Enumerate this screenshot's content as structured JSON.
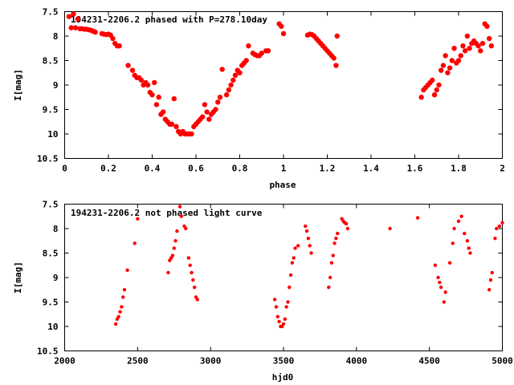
{
  "chart_data": [
    {
      "type": "scatter",
      "title": "194231-2206.2 phased with P=278.10day",
      "xlabel": "phase",
      "ylabel": "I[mag]",
      "xlim": [
        0,
        2
      ],
      "ylim": [
        10.5,
        7.5
      ],
      "y_inverted": true,
      "xticks": [
        "0",
        "0.2",
        "0.4",
        "0.6",
        "0.8",
        "1",
        "1.2",
        "1.4",
        "1.6",
        "1.8",
        "2"
      ],
      "yticks": [
        "7.5",
        "8",
        "8.5",
        "9",
        "9.5",
        "10",
        "10.5"
      ],
      "marker": "filled-circle",
      "color": "#ff0000",
      "grid": false,
      "points": [
        [
          0.02,
          7.6
        ],
        [
          0.03,
          7.83
        ],
        [
          0.04,
          7.55
        ],
        [
          0.05,
          7.83
        ],
        [
          0.06,
          7.65
        ],
        [
          0.07,
          7.85
        ],
        [
          0.08,
          7.85
        ],
        [
          0.09,
          7.86
        ],
        [
          0.1,
          7.86
        ],
        [
          0.11,
          7.87
        ],
        [
          0.12,
          7.88
        ],
        [
          0.13,
          7.9
        ],
        [
          0.14,
          7.92
        ],
        [
          0.17,
          7.95
        ],
        [
          0.18,
          7.96
        ],
        [
          0.19,
          7.97
        ],
        [
          0.2,
          7.96
        ],
        [
          0.21,
          7.98
        ],
        [
          0.22,
          8.05
        ],
        [
          0.23,
          8.15
        ],
        [
          0.24,
          8.2
        ],
        [
          0.25,
          8.2
        ],
        [
          0.29,
          8.6
        ],
        [
          0.31,
          8.7
        ],
        [
          0.32,
          8.8
        ],
        [
          0.33,
          8.85
        ],
        [
          0.34,
          8.85
        ],
        [
          0.35,
          8.9
        ],
        [
          0.36,
          9.0
        ],
        [
          0.37,
          8.95
        ],
        [
          0.38,
          9.0
        ],
        [
          0.39,
          9.15
        ],
        [
          0.4,
          9.2
        ],
        [
          0.41,
          8.95
        ],
        [
          0.42,
          9.4
        ],
        [
          0.43,
          9.25
        ],
        [
          0.44,
          9.6
        ],
        [
          0.45,
          9.55
        ],
        [
          0.46,
          9.7
        ],
        [
          0.47,
          9.75
        ],
        [
          0.48,
          9.8
        ],
        [
          0.49,
          9.8
        ],
        [
          0.5,
          9.28
        ],
        [
          0.51,
          9.85
        ],
        [
          0.52,
          9.95
        ],
        [
          0.53,
          10.0
        ],
        [
          0.54,
          9.95
        ],
        [
          0.55,
          10.0
        ],
        [
          0.56,
          10.0
        ],
        [
          0.57,
          10.0
        ],
        [
          0.58,
          10.0
        ],
        [
          0.59,
          9.85
        ],
        [
          0.6,
          9.8
        ],
        [
          0.61,
          9.75
        ],
        [
          0.62,
          9.7
        ],
        [
          0.63,
          9.65
        ],
        [
          0.64,
          9.4
        ],
        [
          0.65,
          9.55
        ],
        [
          0.66,
          9.7
        ],
        [
          0.67,
          9.6
        ],
        [
          0.68,
          9.55
        ],
        [
          0.69,
          9.5
        ],
        [
          0.7,
          9.35
        ],
        [
          0.71,
          9.25
        ],
        [
          0.72,
          8.68
        ],
        [
          0.74,
          9.2
        ],
        [
          0.75,
          9.1
        ],
        [
          0.76,
          9.0
        ],
        [
          0.77,
          8.9
        ],
        [
          0.78,
          8.8
        ],
        [
          0.79,
          8.7
        ],
        [
          0.8,
          8.75
        ],
        [
          0.81,
          8.6
        ],
        [
          0.82,
          8.55
        ],
        [
          0.83,
          8.5
        ],
        [
          0.84,
          8.2
        ],
        [
          0.86,
          8.35
        ],
        [
          0.87,
          8.38
        ],
        [
          0.88,
          8.4
        ],
        [
          0.89,
          8.4
        ],
        [
          0.9,
          8.35
        ],
        [
          0.92,
          8.3
        ],
        [
          0.93,
          8.3
        ],
        [
          0.98,
          7.75
        ],
        [
          0.99,
          7.8
        ],
        [
          1.0,
          7.95
        ],
        [
          1.11,
          7.98
        ],
        [
          1.12,
          7.96
        ],
        [
          1.13,
          7.97
        ],
        [
          1.14,
          8.0
        ],
        [
          1.15,
          8.05
        ],
        [
          1.16,
          8.1
        ],
        [
          1.17,
          8.15
        ],
        [
          1.18,
          8.2
        ],
        [
          1.19,
          8.25
        ],
        [
          1.2,
          8.3
        ],
        [
          1.21,
          8.35
        ],
        [
          1.22,
          8.4
        ],
        [
          1.23,
          8.45
        ],
        [
          1.24,
          8.6
        ],
        [
          1.245,
          8.0
        ],
        [
          1.63,
          9.25
        ],
        [
          1.64,
          9.1
        ],
        [
          1.65,
          9.05
        ],
        [
          1.66,
          9.0
        ],
        [
          1.67,
          8.95
        ],
        [
          1.68,
          8.9
        ],
        [
          1.69,
          9.2
        ],
        [
          1.7,
          9.1
        ],
        [
          1.71,
          9.0
        ],
        [
          1.72,
          8.7
        ],
        [
          1.73,
          8.6
        ],
        [
          1.74,
          8.4
        ],
        [
          1.75,
          8.75
        ],
        [
          1.76,
          8.65
        ],
        [
          1.77,
          8.5
        ],
        [
          1.78,
          8.25
        ],
        [
          1.79,
          8.55
        ],
        [
          1.8,
          8.5
        ],
        [
          1.81,
          8.4
        ],
        [
          1.82,
          8.2
        ],
        [
          1.83,
          8.3
        ],
        [
          1.84,
          8.0
        ],
        [
          1.85,
          8.25
        ],
        [
          1.86,
          8.15
        ],
        [
          1.87,
          8.1
        ],
        [
          1.88,
          8.15
        ],
        [
          1.89,
          8.2
        ],
        [
          1.9,
          8.3
        ],
        [
          1.91,
          8.15
        ],
        [
          1.92,
          7.75
        ],
        [
          1.93,
          7.8
        ],
        [
          1.94,
          8.05
        ],
        [
          1.95,
          8.2
        ]
      ]
    },
    {
      "type": "scatter",
      "title": "194231-2206.2 not phased light curve",
      "xlabel": "hjd0",
      "ylabel": "I[mag]",
      "xlim": [
        2000,
        5000
      ],
      "ylim": [
        10.5,
        7.5
      ],
      "y_inverted": true,
      "xticks": [
        "2000",
        "2500",
        "3000",
        "3500",
        "4000",
        "4500",
        "5000"
      ],
      "yticks": [
        "7.5",
        "8",
        "8.5",
        "9",
        "9.5",
        "10",
        "10.5"
      ],
      "marker": "small-filled-circle",
      "color": "#ff0000",
      "grid": false,
      "points": [
        [
          2350,
          9.95
        ],
        [
          2360,
          9.85
        ],
        [
          2370,
          9.8
        ],
        [
          2380,
          9.7
        ],
        [
          2390,
          9.6
        ],
        [
          2400,
          9.4
        ],
        [
          2410,
          9.25
        ],
        [
          2430,
          8.85
        ],
        [
          2480,
          8.3
        ],
        [
          2500,
          7.8
        ],
        [
          2710,
          8.9
        ],
        [
          2720,
          8.65
        ],
        [
          2730,
          8.6
        ],
        [
          2740,
          8.55
        ],
        [
          2750,
          8.4
        ],
        [
          2760,
          8.25
        ],
        [
          2770,
          8.05
        ],
        [
          2790,
          7.55
        ],
        [
          2800,
          7.75
        ],
        [
          2820,
          7.95
        ],
        [
          2830,
          8.0
        ],
        [
          2850,
          8.6
        ],
        [
          2860,
          8.75
        ],
        [
          2870,
          8.9
        ],
        [
          2880,
          9.05
        ],
        [
          2890,
          9.2
        ],
        [
          2900,
          9.4
        ],
        [
          2910,
          9.45
        ],
        [
          3440,
          9.45
        ],
        [
          3450,
          9.6
        ],
        [
          3460,
          9.8
        ],
        [
          3470,
          9.9
        ],
        [
          3480,
          10.0
        ],
        [
          3490,
          10.0
        ],
        [
          3500,
          9.95
        ],
        [
          3510,
          9.85
        ],
        [
          3520,
          9.6
        ],
        [
          3530,
          9.5
        ],
        [
          3540,
          9.2
        ],
        [
          3550,
          8.95
        ],
        [
          3560,
          8.7
        ],
        [
          3570,
          8.6
        ],
        [
          3580,
          8.4
        ],
        [
          3600,
          8.35
        ],
        [
          3650,
          7.95
        ],
        [
          3660,
          8.05
        ],
        [
          3670,
          8.2
        ],
        [
          3680,
          8.35
        ],
        [
          3690,
          8.5
        ],
        [
          3810,
          9.2
        ],
        [
          3820,
          9.0
        ],
        [
          3830,
          8.7
        ],
        [
          3840,
          8.55
        ],
        [
          3850,
          8.3
        ],
        [
          3860,
          8.2
        ],
        [
          3870,
          8.1
        ],
        [
          3900,
          7.8
        ],
        [
          3910,
          7.85
        ],
        [
          3920,
          7.88
        ],
        [
          3930,
          7.9
        ],
        [
          3940,
          8.0
        ],
        [
          4230,
          8.0
        ],
        [
          4420,
          7.78
        ],
        [
          4540,
          8.75
        ],
        [
          4560,
          9.0
        ],
        [
          4570,
          9.1
        ],
        [
          4580,
          9.2
        ],
        [
          4600,
          9.5
        ],
        [
          4610,
          9.3
        ],
        [
          4640,
          8.7
        ],
        [
          4660,
          8.3
        ],
        [
          4670,
          8.0
        ],
        [
          4700,
          7.85
        ],
        [
          4720,
          7.75
        ],
        [
          4740,
          8.1
        ],
        [
          4760,
          8.25
        ],
        [
          4770,
          8.4
        ],
        [
          4780,
          8.5
        ],
        [
          4910,
          9.25
        ],
        [
          4920,
          9.05
        ],
        [
          4930,
          8.9
        ],
        [
          4950,
          8.2
        ],
        [
          4960,
          8.0
        ],
        [
          4980,
          7.95
        ],
        [
          5000,
          7.88
        ]
      ]
    }
  ]
}
